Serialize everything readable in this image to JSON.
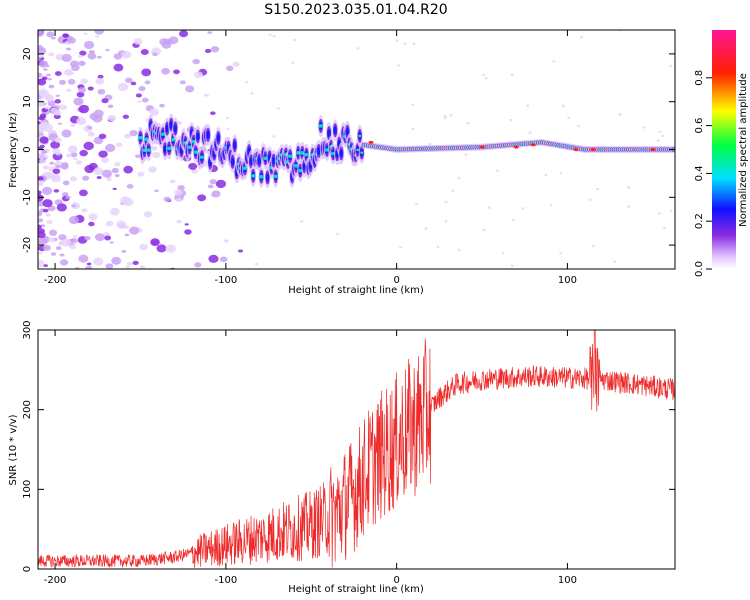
{
  "title": "S150.2023.035.01.04.R20",
  "chart_data": [
    {
      "type": "heatmap",
      "xlabel": "Height of straight line (km)",
      "ylabel": "Frequency (Hz)",
      "xlim": [
        -210,
        163
      ],
      "ylim": [
        -25,
        25
      ],
      "x_ticks": [
        -200,
        -100,
        0,
        100
      ],
      "y_ticks": [
        -20,
        -10,
        0,
        10,
        20
      ],
      "colorbar": {
        "label": "Normalized spectral amplitude",
        "ticks": [
          "0.0",
          "0.2",
          "0.4",
          "0.6",
          "0.8"
        ],
        "range": [
          0,
          1
        ]
      },
      "signal_center_hz": [
        {
          "x": -145,
          "y": 2
        },
        {
          "x": -130,
          "y": 3
        },
        {
          "x": -115,
          "y": 1
        },
        {
          "x": -100,
          "y": -1
        },
        {
          "x": -85,
          "y": -3
        },
        {
          "x": -70,
          "y": -4
        },
        {
          "x": -55,
          "y": -3
        },
        {
          "x": -45,
          "y": 2
        },
        {
          "x": -35,
          "y": 1
        },
        {
          "x": -20,
          "y": 1
        },
        {
          "x": 0,
          "y": 0
        },
        {
          "x": 50,
          "y": 0.5
        },
        {
          "x": 85,
          "y": 1.5
        },
        {
          "x": 110,
          "y": 0
        },
        {
          "x": 163,
          "y": 0
        }
      ],
      "noise_region_x": [
        -210,
        -100
      ]
    },
    {
      "type": "line",
      "xlabel": "Height of straight line (km)",
      "ylabel": "SNR (10 * v/v)",
      "xlim": [
        -210,
        163
      ],
      "ylim": [
        0,
        300
      ],
      "x_ticks": [
        -200,
        -100,
        0,
        100
      ],
      "y_ticks": [
        0,
        100,
        200,
        300
      ],
      "series": [
        {
          "color": "#ee2a2a",
          "trend": [
            {
              "x": -210,
              "y": 10
            },
            {
              "x": -150,
              "y": 10
            },
            {
              "x": -130,
              "y": 15
            },
            {
              "x": -110,
              "y": 25
            },
            {
              "x": -90,
              "y": 35
            },
            {
              "x": -70,
              "y": 45
            },
            {
              "x": -50,
              "y": 55
            },
            {
              "x": -35,
              "y": 70
            },
            {
              "x": -25,
              "y": 95
            },
            {
              "x": -15,
              "y": 130
            },
            {
              "x": 0,
              "y": 160
            },
            {
              "x": 15,
              "y": 190
            },
            {
              "x": 25,
              "y": 215
            },
            {
              "x": 35,
              "y": 232
            },
            {
              "x": 50,
              "y": 238
            },
            {
              "x": 80,
              "y": 242
            },
            {
              "x": 100,
              "y": 240
            },
            {
              "x": 120,
              "y": 238
            },
            {
              "x": 140,
              "y": 232
            },
            {
              "x": 163,
              "y": 225
            }
          ],
          "spike": {
            "x": 116,
            "y": 305
          }
        }
      ]
    }
  ]
}
